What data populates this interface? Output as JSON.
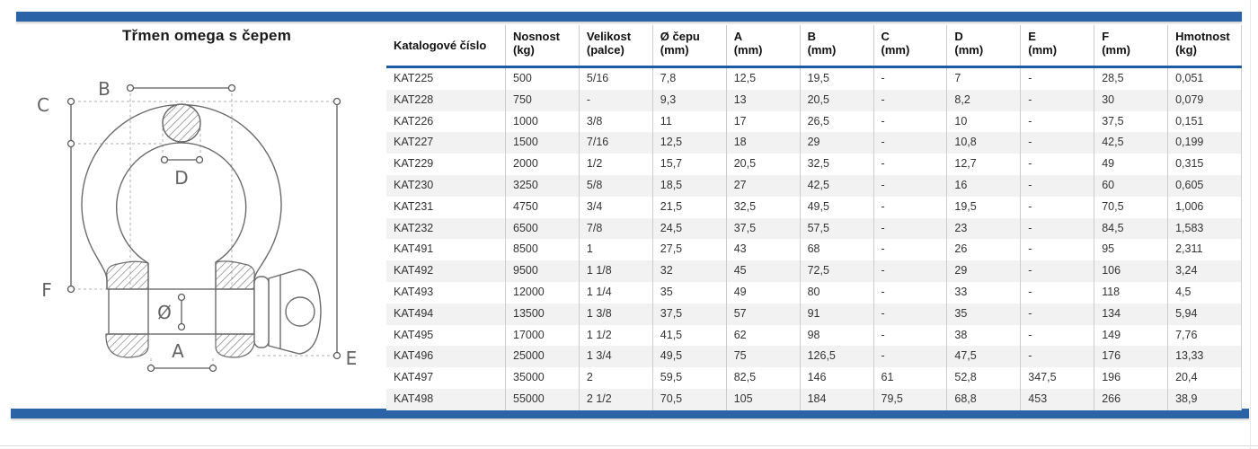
{
  "page": {
    "title": "Třmen omega s čepem"
  },
  "colors": {
    "accent_blue": "#2b64a6",
    "header_rule_blue": "#1b5aa5",
    "row_stripe": "#f2f2f2"
  },
  "diagram": {
    "description": "technical-drawing-bow-shackle-with-screw-pin",
    "labels": {
      "a": "A",
      "b": "B",
      "c": "C",
      "d": "D",
      "e": "E",
      "f": "F",
      "diameter": "Ø"
    }
  },
  "table": {
    "headers": [
      {
        "line1": "Katalogové číslo",
        "line2": ""
      },
      {
        "line1": "Nosnost",
        "line2": "(kg)"
      },
      {
        "line1": "Velikost",
        "line2": "(palce)"
      },
      {
        "line1": "Ø čepu",
        "line2": "(mm)"
      },
      {
        "line1": "A",
        "line2": "(mm)"
      },
      {
        "line1": "B",
        "line2": "(mm)"
      },
      {
        "line1": "C",
        "line2": "(mm)"
      },
      {
        "line1": "D",
        "line2": "(mm)"
      },
      {
        "line1": "E",
        "line2": "(mm)"
      },
      {
        "line1": "F",
        "line2": "(mm)"
      },
      {
        "line1": "Hmotnost",
        "line2": "(kg)"
      }
    ],
    "rows": [
      [
        "KAT225",
        "500",
        "5/16",
        "7,8",
        "12,5",
        "19,5",
        "-",
        "7",
        "-",
        "28,5",
        "0,051"
      ],
      [
        "KAT228",
        "750",
        "-",
        "9,3",
        "13",
        "20,5",
        "-",
        "8,2",
        "-",
        "30",
        "0,079"
      ],
      [
        "KAT226",
        "1000",
        "3/8",
        "11",
        "17",
        "26,5",
        "-",
        "10",
        "-",
        "37,5",
        "0,151"
      ],
      [
        "KAT227",
        "1500",
        "7/16",
        "12,5",
        "18",
        "29",
        "-",
        "10,8",
        "-",
        "42,5",
        "0,199"
      ],
      [
        "KAT229",
        "2000",
        "1/2",
        "15,7",
        "20,5",
        "32,5",
        "-",
        "12,7",
        "-",
        "49",
        "0,315"
      ],
      [
        "KAT230",
        "3250",
        "5/8",
        "18,5",
        "27",
        "42,5",
        "-",
        "16",
        "-",
        "60",
        "0,605"
      ],
      [
        "KAT231",
        "4750",
        "3/4",
        "21,5",
        "32,5",
        "49,5",
        "-",
        "19,5",
        "-",
        "70,5",
        "1,006"
      ],
      [
        "KAT232",
        "6500",
        "7/8",
        "24,5",
        "37,5",
        "57,5",
        "-",
        "23",
        "-",
        "84,5",
        "1,583"
      ],
      [
        "KAT491",
        "8500",
        "1",
        "27,5",
        "43",
        "68",
        "-",
        "26",
        "-",
        "95",
        "2,311"
      ],
      [
        "KAT492",
        "9500",
        "1 1/8",
        "32",
        "45",
        "72,5",
        "-",
        "29",
        "-",
        "106",
        "3,24"
      ],
      [
        "KAT493",
        "12000",
        "1 1/4",
        "35",
        "49",
        "80",
        "-",
        "33",
        "-",
        "118",
        "4,5"
      ],
      [
        "KAT494",
        "13500",
        "1 3/8",
        "37,5",
        "57",
        "91",
        "-",
        "35",
        "-",
        "134",
        "5,94"
      ],
      [
        "KAT495",
        "17000",
        "1 1/2",
        "41,5",
        "62",
        "98",
        "-",
        "38",
        "-",
        "149",
        "7,76"
      ],
      [
        "KAT496",
        "25000",
        "1 3/4",
        "49,5",
        "75",
        "126,5",
        "-",
        "47,5",
        "-",
        "176",
        "13,33"
      ],
      [
        "KAT497",
        "35000",
        "2",
        "59,5",
        "82,5",
        "146",
        "61",
        "52,8",
        "347,5",
        "196",
        "20,4"
      ],
      [
        "KAT498",
        "55000",
        "2 1/2",
        "70,5",
        "105",
        "184",
        "79,5",
        "68,8",
        "453",
        "266",
        "38,9"
      ]
    ]
  }
}
